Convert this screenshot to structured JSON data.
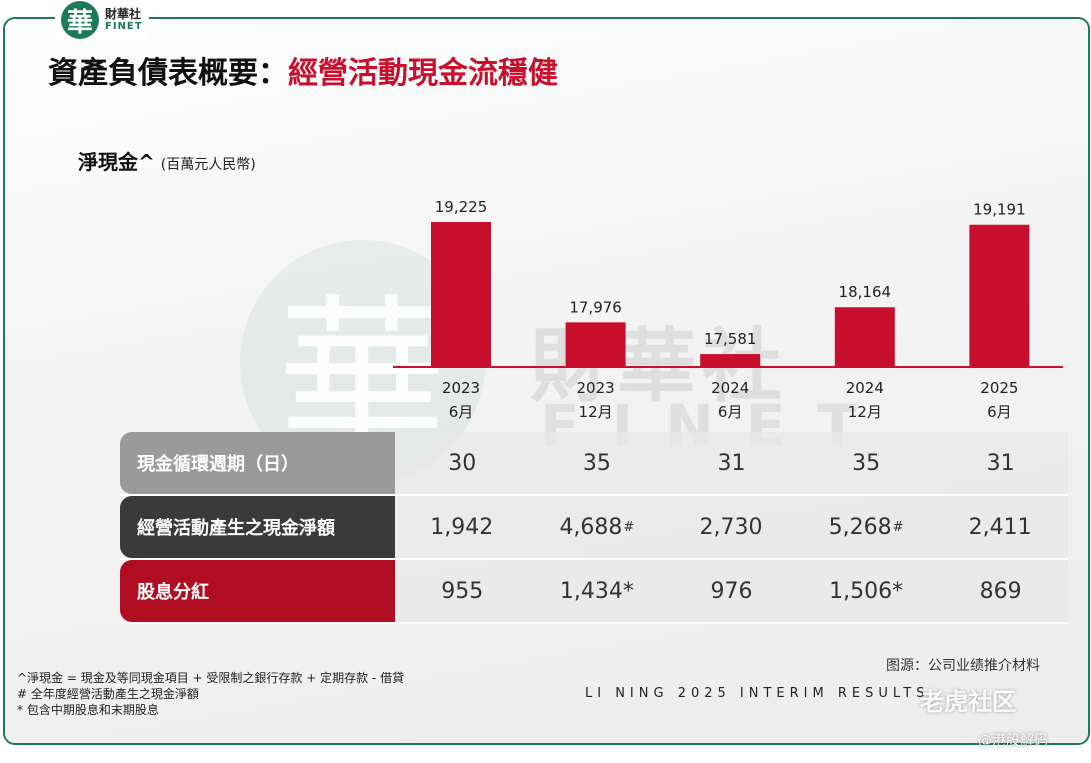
{
  "brand": {
    "mark": "華",
    "cn": "財華社",
    "en": "FINET"
  },
  "title": {
    "main": "資產負債表概要：",
    "highlight": "經營活動現金流穩健"
  },
  "subtitle": {
    "label": "淨現金^",
    "unit": "(百萬元人民幣)"
  },
  "watermark": {
    "mark": "華",
    "cn": "財華社",
    "en": "FINET"
  },
  "colors": {
    "bar": "#c8102e",
    "brand_green": "#1c7a5a",
    "accent_red": "#b00d22"
  },
  "chart_data": {
    "type": "bar",
    "title": "淨現金^",
    "ylabel": "(百萬元人民幣)",
    "categories": [
      {
        "year": "2023",
        "month": "6月"
      },
      {
        "year": "2023",
        "month": "12月"
      },
      {
        "year": "2024",
        "month": "6月"
      },
      {
        "year": "2024",
        "month": "12月"
      },
      {
        "year": "2025",
        "month": "6月"
      }
    ],
    "values": [
      19225,
      17976,
      17581,
      18164,
      19191
    ],
    "value_labels": [
      "19,225",
      "17,976",
      "17,581",
      "18,164",
      "19,191"
    ],
    "ylim": [
      0,
      20000
    ],
    "grid": false,
    "legend": "none"
  },
  "table": {
    "rows": [
      {
        "label": "現金循環週期（日）",
        "values": [
          "30",
          "35",
          "31",
          "35",
          "31"
        ],
        "marks": [
          "",
          "",
          "",
          "",
          ""
        ]
      },
      {
        "label": "經營活動產生之現金淨額",
        "values": [
          "1,942",
          "4,688",
          "2,730",
          "5,268",
          "2,411"
        ],
        "marks": [
          "",
          "#",
          "",
          "#",
          ""
        ]
      },
      {
        "label": "股息分紅",
        "values": [
          "955",
          "1,434*",
          "976",
          "1,506*",
          "869"
        ],
        "marks": [
          "",
          "",
          "",
          "",
          ""
        ]
      }
    ]
  },
  "source": "图源：公司业绩推介材料",
  "notes": [
    "^淨現金 = 現金及等同現金項目 + 受限制之銀行存款 + 定期存款 - 借貸",
    "# 全年度經營活動產生之現金淨額",
    "* 包含中期股息和末期股息"
  ],
  "footer": "LI NING 2025 INTERIM RESULTS",
  "overlay": {
    "tiger": "老虎社区",
    "handle": "@港股解码"
  }
}
